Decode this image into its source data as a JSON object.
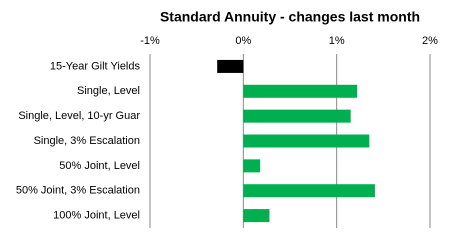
{
  "chart_data": {
    "type": "bar",
    "orientation": "horizontal",
    "title": "Standard Annuity - changes last month",
    "categories": [
      "15-Year Gilt Yields",
      "Single, Level",
      "Single, Level, 10-yr Guar",
      "Single, 3% Escalation",
      "50% Joint, Level",
      "50% Joint, 3% Escalation",
      "100% Joint, Level"
    ],
    "values": [
      -0.28,
      1.22,
      1.15,
      1.35,
      0.18,
      1.41,
      0.28
    ],
    "colors": [
      "#000000",
      "#00b050",
      "#00b050",
      "#00b050",
      "#00b050",
      "#00b050",
      "#00b050"
    ],
    "xlim": [
      -1,
      2
    ],
    "xticks": [
      {
        "value": -1,
        "label": "-1%"
      },
      {
        "value": 0,
        "label": "0%"
      },
      {
        "value": 1,
        "label": "1%"
      },
      {
        "value": 2,
        "label": "2%"
      }
    ],
    "grid": true
  }
}
